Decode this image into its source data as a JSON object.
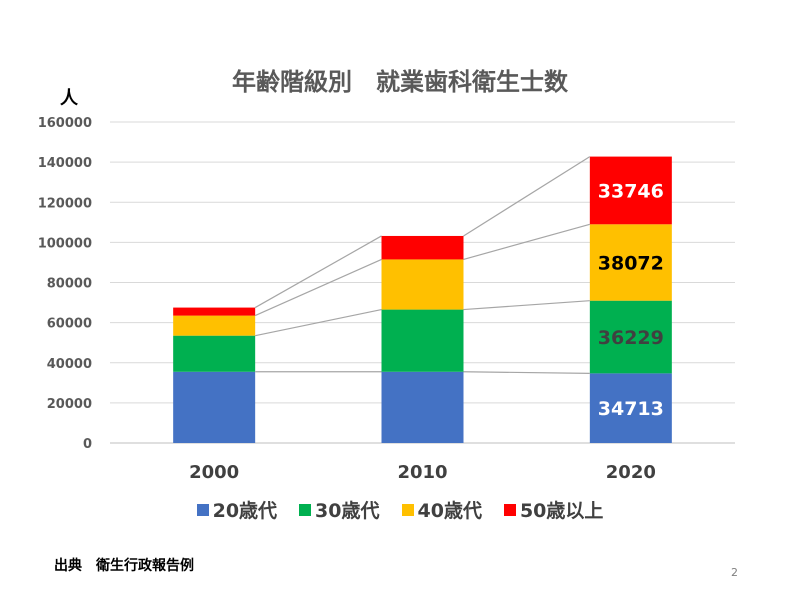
{
  "chart_data": {
    "type": "bar",
    "stacked": true,
    "title": "年齢階級別　就業歯科衛生士数",
    "ylabel": "人",
    "xlabel": "",
    "categories": [
      "2000",
      "2010",
      "2020"
    ],
    "series": [
      {
        "name": "20歳代",
        "color": "#4472C4",
        "values": [
          35500,
          35500,
          34713
        ]
      },
      {
        "name": "30歳代",
        "color": "#00B050",
        "values": [
          18000,
          31000,
          36229
        ]
      },
      {
        "name": "40歳代",
        "color": "#FFC000",
        "values": [
          10000,
          25000,
          38072
        ]
      },
      {
        "name": "50歳以上",
        "color": "#FF0000",
        "values": [
          4000,
          11700,
          33746
        ]
      }
    ],
    "data_labels": [
      {
        "category": "2020",
        "series": "20歳代",
        "text": "34713",
        "color": "#ffffff"
      },
      {
        "category": "2020",
        "series": "30歳代",
        "text": "36229",
        "color": "#404040"
      },
      {
        "category": "2020",
        "series": "40歳代",
        "text": "38072",
        "color": "#000000"
      },
      {
        "category": "2020",
        "series": "50歳以上",
        "text": "33746",
        "color": "#ffffff"
      }
    ],
    "ylim": [
      0,
      160000
    ],
    "yticks": [
      0,
      20000,
      40000,
      60000,
      80000,
      100000,
      120000,
      140000,
      160000
    ],
    "grid": true,
    "series_lines": true,
    "legend_position": "bottom"
  },
  "source": "出典　衛生行政報告例",
  "page_number": "2"
}
